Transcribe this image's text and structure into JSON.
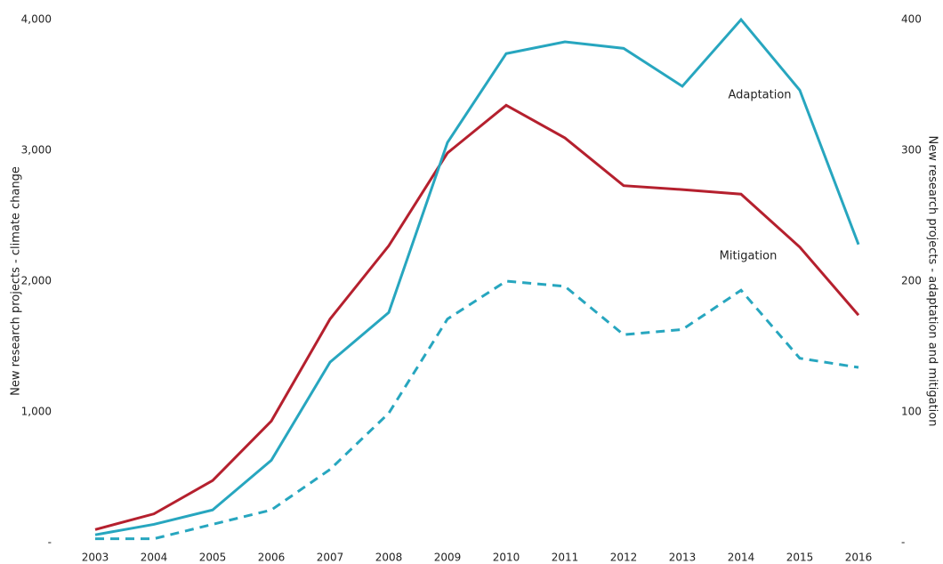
{
  "chart_data": {
    "type": "line",
    "categories": [
      "2003",
      "2004",
      "2005",
      "2006",
      "2007",
      "2008",
      "2009",
      "2010",
      "2011",
      "2012",
      "2013",
      "2014",
      "2015",
      "2016"
    ],
    "ylabel": "New research projects - climate change",
    "y2label": "New research projects - adaptation and mitigation",
    "ylim": [
      0,
      4000
    ],
    "yticks": [
      {
        "value": 0,
        "label": "-"
      },
      {
        "value": 1000,
        "label": "1,000"
      },
      {
        "value": 2000,
        "label": "2,000"
      },
      {
        "value": 3000,
        "label": "3,000"
      },
      {
        "value": 4000,
        "label": "4,000"
      }
    ],
    "y2lim": [
      0,
      400
    ],
    "y2ticks": [
      {
        "value": 0,
        "label": "-"
      },
      100,
      200,
      300,
      400
    ],
    "series": [
      {
        "color": "#b5202e",
        "style": "solid",
        "values": [
          100,
          220,
          475,
          930,
          1710,
          2270,
          2980,
          3345,
          3095,
          2730,
          2700,
          2665,
          2260,
          1740
        ]
      },
      {
        "name": "Adaptation",
        "color": "#27a6bf",
        "style": "solid",
        "axis": "y2",
        "values": [
          6,
          14,
          25,
          63,
          138,
          176,
          306,
          374,
          383,
          378,
          349,
          400,
          346,
          228
        ]
      },
      {
        "name": "Mitigation",
        "color": "#27a6bf",
        "style": "dashed",
        "axis": "y2",
        "values": [
          3,
          3,
          14,
          25,
          56,
          99,
          171,
          200,
          196,
          159,
          163,
          193,
          141,
          134
        ]
      }
    ]
  }
}
